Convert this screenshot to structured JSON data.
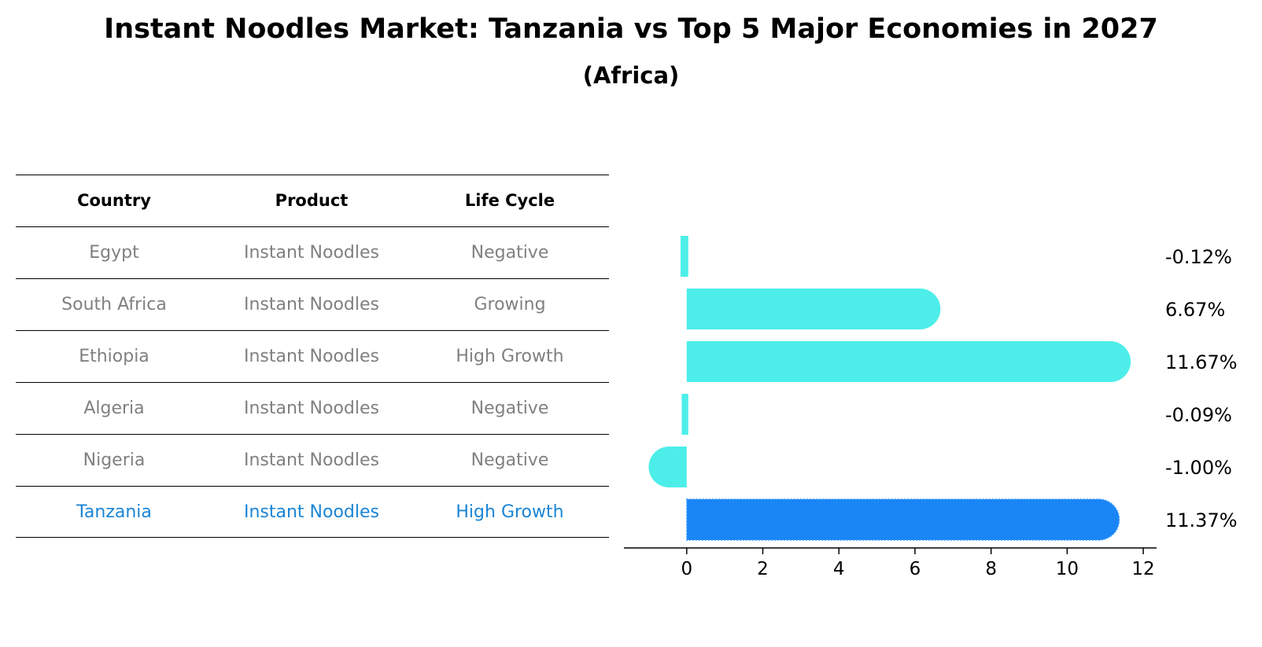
{
  "title": "Instant Noodles Market: Tanzania vs Top 5 Major Economies in 2027",
  "subtitle": "(Africa)",
  "table": {
    "headers": [
      "Country",
      "Product",
      "Life Cycle"
    ],
    "rows": [
      {
        "country": "Egypt",
        "product": "Instant Noodles",
        "life_cycle": "Negative"
      },
      {
        "country": "South Africa",
        "product": "Instant Noodles",
        "life_cycle": "Growing"
      },
      {
        "country": "Ethiopia",
        "product": "Instant Noodles",
        "life_cycle": "High Growth"
      },
      {
        "country": "Algeria",
        "product": "Instant Noodles",
        "life_cycle": "Negative"
      },
      {
        "country": "Nigeria",
        "product": "Instant Noodles",
        "life_cycle": "Negative"
      },
      {
        "country": "Tanzania",
        "product": "Instant Noodles",
        "life_cycle": "High Growth"
      }
    ]
  },
  "colors": {
    "bar": "#4deee9",
    "highlight_bar": "#1a85f5",
    "highlight_text": "#1a85d6",
    "muted_text": "#808080"
  },
  "chart_data": {
    "type": "bar",
    "orientation": "horizontal",
    "categories": [
      "Egypt",
      "South Africa",
      "Ethiopia",
      "Algeria",
      "Nigeria",
      "Tanzania"
    ],
    "values": [
      -0.12,
      6.67,
      11.67,
      -0.09,
      -1.0,
      11.37
    ],
    "labels": [
      "-0.12%",
      "6.67%",
      "11.67%",
      "-0.09%",
      "-1.00%",
      "11.37%"
    ],
    "highlight": "Tanzania",
    "xlim": [
      -1.65,
      12.35
    ],
    "xticks": [
      0,
      2,
      4,
      6,
      8,
      10,
      12
    ],
    "title": "",
    "xlabel": "",
    "ylabel": ""
  }
}
